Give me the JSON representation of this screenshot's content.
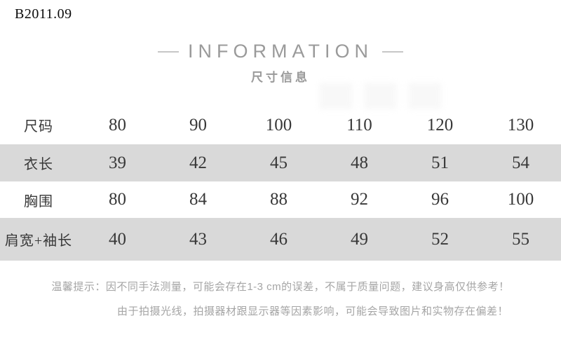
{
  "product_code": "B2011.09",
  "header": {
    "title": "INFORMATION",
    "subtitle": "尺寸信息"
  },
  "chart_data": {
    "type": "table",
    "title": "尺寸信息",
    "columns": [
      "尺码",
      "80",
      "90",
      "100",
      "110",
      "120",
      "130"
    ],
    "rows": [
      {
        "label": "衣长",
        "values": [
          "39",
          "42",
          "45",
          "48",
          "51",
          "54"
        ]
      },
      {
        "label": "胸围",
        "values": [
          "80",
          "84",
          "88",
          "92",
          "96",
          "100"
        ]
      },
      {
        "label": "肩宽+袖长",
        "values": [
          "40",
          "43",
          "46",
          "49",
          "52",
          "55"
        ]
      }
    ],
    "layout_hints": {
      "striped_rows": [
        1,
        3
      ],
      "stripe_color": "#d9d9d9",
      "grid": "none"
    }
  },
  "tips": {
    "line1": "温馨提示：因不同手法测量，可能会存在1-3 cm的误差，不属于质量问题，建议身高仅供参考！",
    "line2": "由于拍摄光线，拍摄器材跟显示器等因素影响，可能会导致图片和实物存在偏差！"
  },
  "colors": {
    "heading_gray": "#9a9a9a",
    "stripe_gray": "#d9d9d9",
    "table_text": "#383838",
    "tips_gray": "#a5a5a5"
  }
}
